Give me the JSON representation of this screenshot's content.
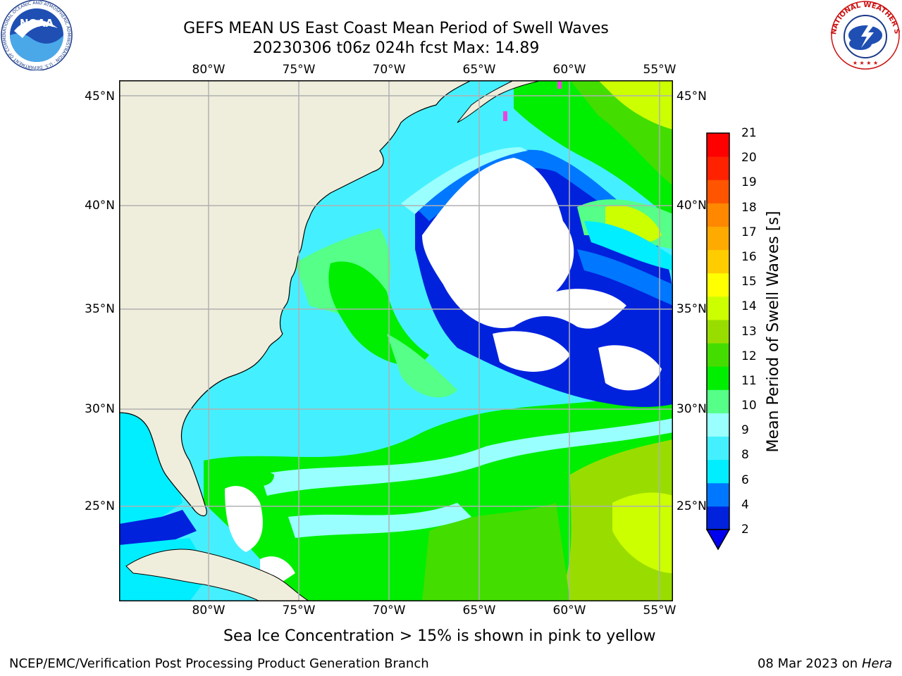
{
  "title": {
    "line1": "GEFS MEAN US East Coast Mean Period of Swell Waves",
    "line2": "20230306 t06z 024h fcst   Max: 14.89"
  },
  "axes": {
    "lon_ticks": [
      "80°W",
      "75°W",
      "70°W",
      "65°W",
      "60°W",
      "55°W"
    ],
    "lat_ticks": [
      "45°N",
      "40°N",
      "35°N",
      "30°N",
      "25°N"
    ]
  },
  "colorbar": {
    "label": "Mean Period of Swell Waves [s]",
    "ticks": [
      "21",
      "20",
      "19",
      "18",
      "17",
      "16",
      "15",
      "14",
      "13",
      "12",
      "11",
      "10",
      "9",
      "8",
      "6",
      "4",
      "2"
    ],
    "colors": [
      "#0022dd",
      "#0077ff",
      "#00eeff",
      "#44f0ff",
      "#99ffff",
      "#55ff88",
      "#00ee00",
      "#44dd00",
      "#99dd00",
      "#ccff00",
      "#ffff00",
      "#ffcc00",
      "#ffaa00",
      "#ff8800",
      "#ff5500",
      "#ff2200",
      "#ff0000"
    ],
    "under_color": "#0000ee"
  },
  "map_colors": {
    "land": "#efeedc",
    "white_zone": "#ffffff",
    "ice": "#ee44dd"
  },
  "note": "Sea Ice Concentration > 15% is shown in pink to yellow",
  "footer": {
    "left": "NCEP/EMC/Verification Post Processing Product Generation Branch",
    "date": "08 Mar 2023 on",
    "machine": "Hera"
  },
  "logos": {
    "noaa_text": "NOAA",
    "noaa_ring": "NATIONAL OCEANIC AND ATMOSPHERIC ADMINISTRATION · U.S. DEPARTMENT OF COMMERCE",
    "nws_ring": "NATIONAL WEATHER SERVICE"
  }
}
